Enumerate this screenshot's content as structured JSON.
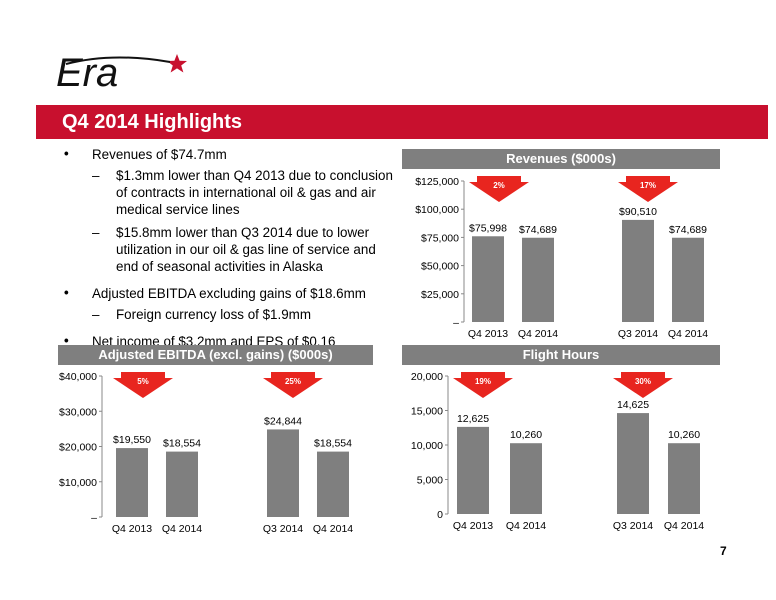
{
  "logo_text": "Era",
  "title": "Q4 2014 Highlights",
  "bullets": {
    "b1": "Revenues of $74.7mm",
    "b1_sub1": "$1.3mm lower than Q4 2013 due to conclusion of contracts in international oil & gas and air medical service lines",
    "b1_sub2": "$15.8mm lower than Q3 2014 due to lower utilization in our oil & gas line of service and end of seasonal activities in Alaska",
    "b2": "Adjusted EBITDA excluding gains of $18.6mm",
    "b2_sub1": "Foreign currency loss of $1.9mm",
    "b3": "Net income of $3.2mm and EPS of $0.16"
  },
  "page_number": "7",
  "colors": {
    "brand_red": "#c8102e",
    "bar": "#7f7f7f",
    "arrow": "#e8251f"
  },
  "chart_data": [
    {
      "id": "revenues",
      "type": "bar",
      "title": "Revenues ($000s)",
      "categories": [
        "Q4 2013",
        "Q4 2014",
        "Q3 2014",
        "Q4 2014"
      ],
      "values": [
        75998,
        74689,
        90510,
        74689
      ],
      "value_labels": [
        "$75,998",
        "$74,689",
        "$90,510",
        "$74,689"
      ],
      "ylim": [
        0,
        125000
      ],
      "yticks": [
        0,
        25000,
        50000,
        75000,
        100000,
        125000
      ],
      "ytick_labels": [
        "–",
        "$25,000",
        "$50,000",
        "$75,000",
        "$100,000",
        "$125,000"
      ],
      "annotations": [
        "2%",
        "17%"
      ]
    },
    {
      "id": "ebitda",
      "type": "bar",
      "title": "Adjusted EBITDA (excl. gains) ($000s)",
      "categories": [
        "Q4 2013",
        "Q4 2014",
        "Q3 2014",
        "Q4 2014"
      ],
      "values": [
        19550,
        18554,
        24844,
        18554
      ],
      "value_labels": [
        "$19,550",
        "$18,554",
        "$24,844",
        "$18,554"
      ],
      "ylim": [
        0,
        40000
      ],
      "yticks": [
        0,
        10000,
        20000,
        30000,
        40000
      ],
      "ytick_labels": [
        "–",
        "$10,000",
        "$20,000",
        "$30,000",
        "$40,000"
      ],
      "annotations": [
        "5%",
        "25%"
      ]
    },
    {
      "id": "flight_hours",
      "type": "bar",
      "title": "Flight Hours",
      "categories": [
        "Q4 2013",
        "Q4 2014",
        "Q3 2014",
        "Q4 2014"
      ],
      "values": [
        12625,
        10260,
        14625,
        10260
      ],
      "value_labels": [
        "12,625",
        "10,260",
        "14,625",
        "10,260"
      ],
      "ylim": [
        0,
        20000
      ],
      "yticks": [
        0,
        5000,
        10000,
        15000,
        20000
      ],
      "ytick_labels": [
        "0",
        "5,000",
        "10,000",
        "15,000",
        "20,000"
      ],
      "annotations": [
        "19%",
        "30%"
      ]
    }
  ]
}
